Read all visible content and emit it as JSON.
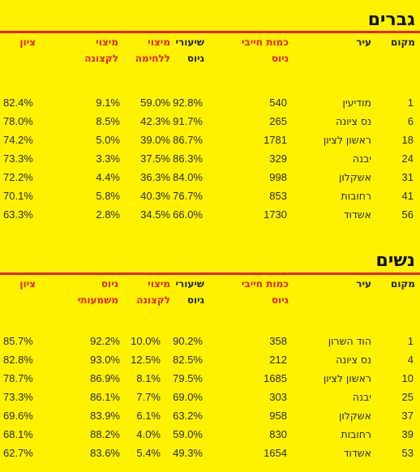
{
  "men": {
    "title": "גברים",
    "headers": {
      "place": "מקום",
      "city": "עיר",
      "draftees": [
        "כמות חייבי",
        "גיוס"
      ],
      "enlist_rate": [
        "שיעורי",
        "גיוס"
      ],
      "combat": [
        "מיצוי",
        "ללחימה"
      ],
      "officer": [
        "מיצוי",
        "לקצונה"
      ],
      "score": "ציון"
    },
    "rows": [
      {
        "place": "1",
        "city": "מודיעין",
        "draftees": "540",
        "enlist_rate": "92.8%",
        "combat": "59.0%",
        "officer": "9.1%",
        "score": "82.4%"
      },
      {
        "place": "6",
        "city": "נס ציונה",
        "draftees": "265",
        "enlist_rate": "91.7%",
        "combat": "42.3%",
        "officer": "8.5%",
        "score": "78.0%"
      },
      {
        "place": "18",
        "city": "ראשון לציון",
        "draftees": "1781",
        "enlist_rate": "86.7%",
        "combat": "39.0%",
        "officer": "5.0%",
        "score": "74.2%"
      },
      {
        "place": "24",
        "city": "יבנה",
        "draftees": "329",
        "enlist_rate": "86.3%",
        "combat": "37.5%",
        "officer": "3.3%",
        "score": "73.3%"
      },
      {
        "place": "31",
        "city": "אשקלון",
        "draftees": "998",
        "enlist_rate": "84.0%",
        "combat": "36.3%",
        "officer": "4.4%",
        "score": "72.2%"
      },
      {
        "place": "41",
        "city": "רחובות",
        "draftees": "853",
        "enlist_rate": "76.7%",
        "combat": "40.3%",
        "officer": "5.8%",
        "score": "70.1%"
      },
      {
        "place": "56",
        "city": "אשדוד",
        "draftees": "1730",
        "enlist_rate": "66.0%",
        "combat": "34.5%",
        "officer": "2.8%",
        "score": "63.3%"
      }
    ]
  },
  "women": {
    "title": "נשים",
    "headers": {
      "place": "מקום",
      "city": "עיר",
      "draftees": [
        "כמות חייבי",
        "גיוס"
      ],
      "enlist_rate": [
        "שיעורי",
        "גיוס"
      ],
      "officer": [
        "מיצוי",
        "לקצונה"
      ],
      "meaningful": [
        "גיוס",
        "משמעותי"
      ],
      "score": "ציון"
    },
    "rows": [
      {
        "place": "1",
        "city": "הוד השרון",
        "draftees": "358",
        "enlist_rate": "90.2%",
        "officer": "10.0%",
        "meaningful": "92.2%",
        "score": "85.7%"
      },
      {
        "place": "4",
        "city": "נס ציונה",
        "draftees": "212",
        "enlist_rate": "82.5%",
        "officer": "12.5%",
        "meaningful": "93.0%",
        "score": "82.8%"
      },
      {
        "place": "10",
        "city": "ראשון לציון",
        "draftees": "1685",
        "enlist_rate": "79.5%",
        "officer": "8.1%",
        "meaningful": "86.9%",
        "score": "78.7%"
      },
      {
        "place": "25",
        "city": "יבנה",
        "draftees": "303",
        "enlist_rate": "69.0%",
        "officer": "7.7%",
        "meaningful": "86.1%",
        "score": "73.3%"
      },
      {
        "place": "37",
        "city": "אשקלון",
        "draftees": "958",
        "enlist_rate": "63.2%",
        "officer": "6.1%",
        "meaningful": "83.9%",
        "score": "69.6%"
      },
      {
        "place": "39",
        "city": "רחובות",
        "draftees": "830",
        "enlist_rate": "59.0%",
        "officer": "4.0%",
        "meaningful": "88.2%",
        "score": "68.1%"
      },
      {
        "place": "53",
        "city": "אשדוד",
        "draftees": "1654",
        "enlist_rate": "49.3%",
        "officer": "5.4%",
        "meaningful": "83.6%",
        "score": "62.7%"
      }
    ]
  }
}
